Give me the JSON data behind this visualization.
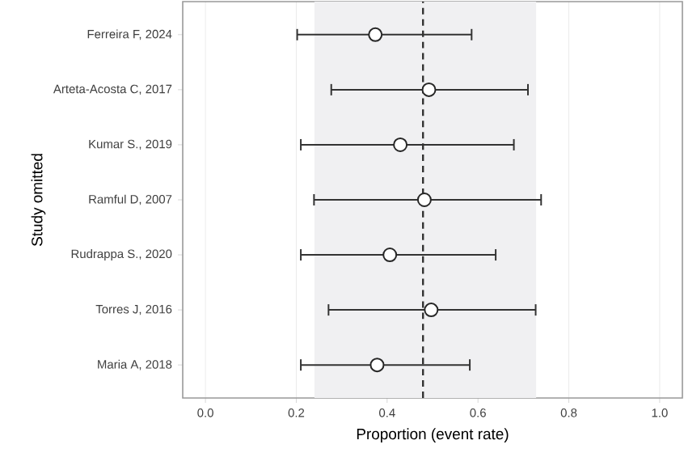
{
  "chart_data": {
    "type": "scatter",
    "orientation": "horizontal",
    "ylabel": "Study omitted",
    "xlabel": "Proportion (event rate)",
    "categories": [
      "Ferreira F, 2024",
      "Arteta-Acosta C, 2017",
      "Kumar S., 2019",
      "Ramful D, 2007",
      "Rudrappa S., 2020",
      "Torres J, 2016",
      "Maria A, 2018"
    ],
    "values": [
      0.374,
      0.492,
      0.429,
      0.482,
      0.406,
      0.497,
      0.378
    ],
    "errors": [
      [
        0.202,
        0.586
      ],
      [
        0.277,
        0.71
      ],
      [
        0.21,
        0.679
      ],
      [
        0.239,
        0.739
      ],
      [
        0.21,
        0.639
      ],
      [
        0.271,
        0.727
      ],
      [
        0.21,
        0.582
      ]
    ],
    "color": "#ffffff",
    "marker": "circle",
    "xlim": [
      -0.05,
      1.05
    ],
    "xticks": [
      {
        "value": 0,
        "label": "0.0"
      },
      0.2,
      0.4,
      0.6,
      0.8,
      {
        "value": 1,
        "label": "1.0"
      }
    ],
    "grid": "x",
    "ref_lines": [
      {
        "axis": "x",
        "value": 0.479,
        "line_style": "dashed",
        "color": "#333333"
      }
    ],
    "bands": [
      {
        "axis": "x",
        "from": 0.24,
        "to": 0.728,
        "color": "#f0f0f2"
      }
    ]
  }
}
